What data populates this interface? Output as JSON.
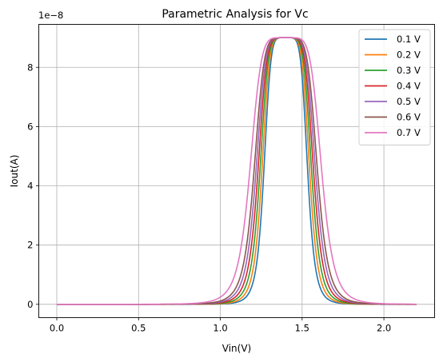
{
  "chart_data": {
    "type": "line",
    "title": "Parametric Analysis for Vc",
    "xlabel": "Vin(V)",
    "ylabel": "Iout(A)",
    "offset_text": "1e−8",
    "xlim": [
      -0.11,
      2.31
    ],
    "ylim": [
      -0.45,
      9.45
    ],
    "x_ticks": [
      0.0,
      0.5,
      1.0,
      1.5,
      2.0
    ],
    "x_tick_labels": [
      "0.0",
      "0.5",
      "1.0",
      "1.5",
      "2.0"
    ],
    "y_ticks": [
      0,
      2,
      4,
      6,
      8
    ],
    "y_tick_labels": [
      "0",
      "2",
      "4",
      "6",
      "8"
    ],
    "grid": true,
    "legend_position": "upper-right",
    "x_range": [
      0.0,
      2.2
    ],
    "peak_x": 1.4,
    "peak_value_1e-8": 9.0,
    "series": [
      {
        "name": "0.1 V",
        "color": "#1f77b4",
        "half_width_at_half_max": 0.134
      },
      {
        "name": "0.2 V",
        "color": "#ff7f0e",
        "half_width_at_half_max": 0.146
      },
      {
        "name": "0.3 V",
        "color": "#2ca02c",
        "half_width_at_half_max": 0.158
      },
      {
        "name": "0.4 V",
        "color": "#d62728",
        "half_width_at_half_max": 0.17
      },
      {
        "name": "0.5 V",
        "color": "#9467bd",
        "half_width_at_half_max": 0.182
      },
      {
        "name": "0.6 V",
        "color": "#8c564b",
        "half_width_at_half_max": 0.194
      },
      {
        "name": "0.7 V",
        "color": "#e377c2",
        "half_width_at_half_max": 0.22
      }
    ]
  }
}
